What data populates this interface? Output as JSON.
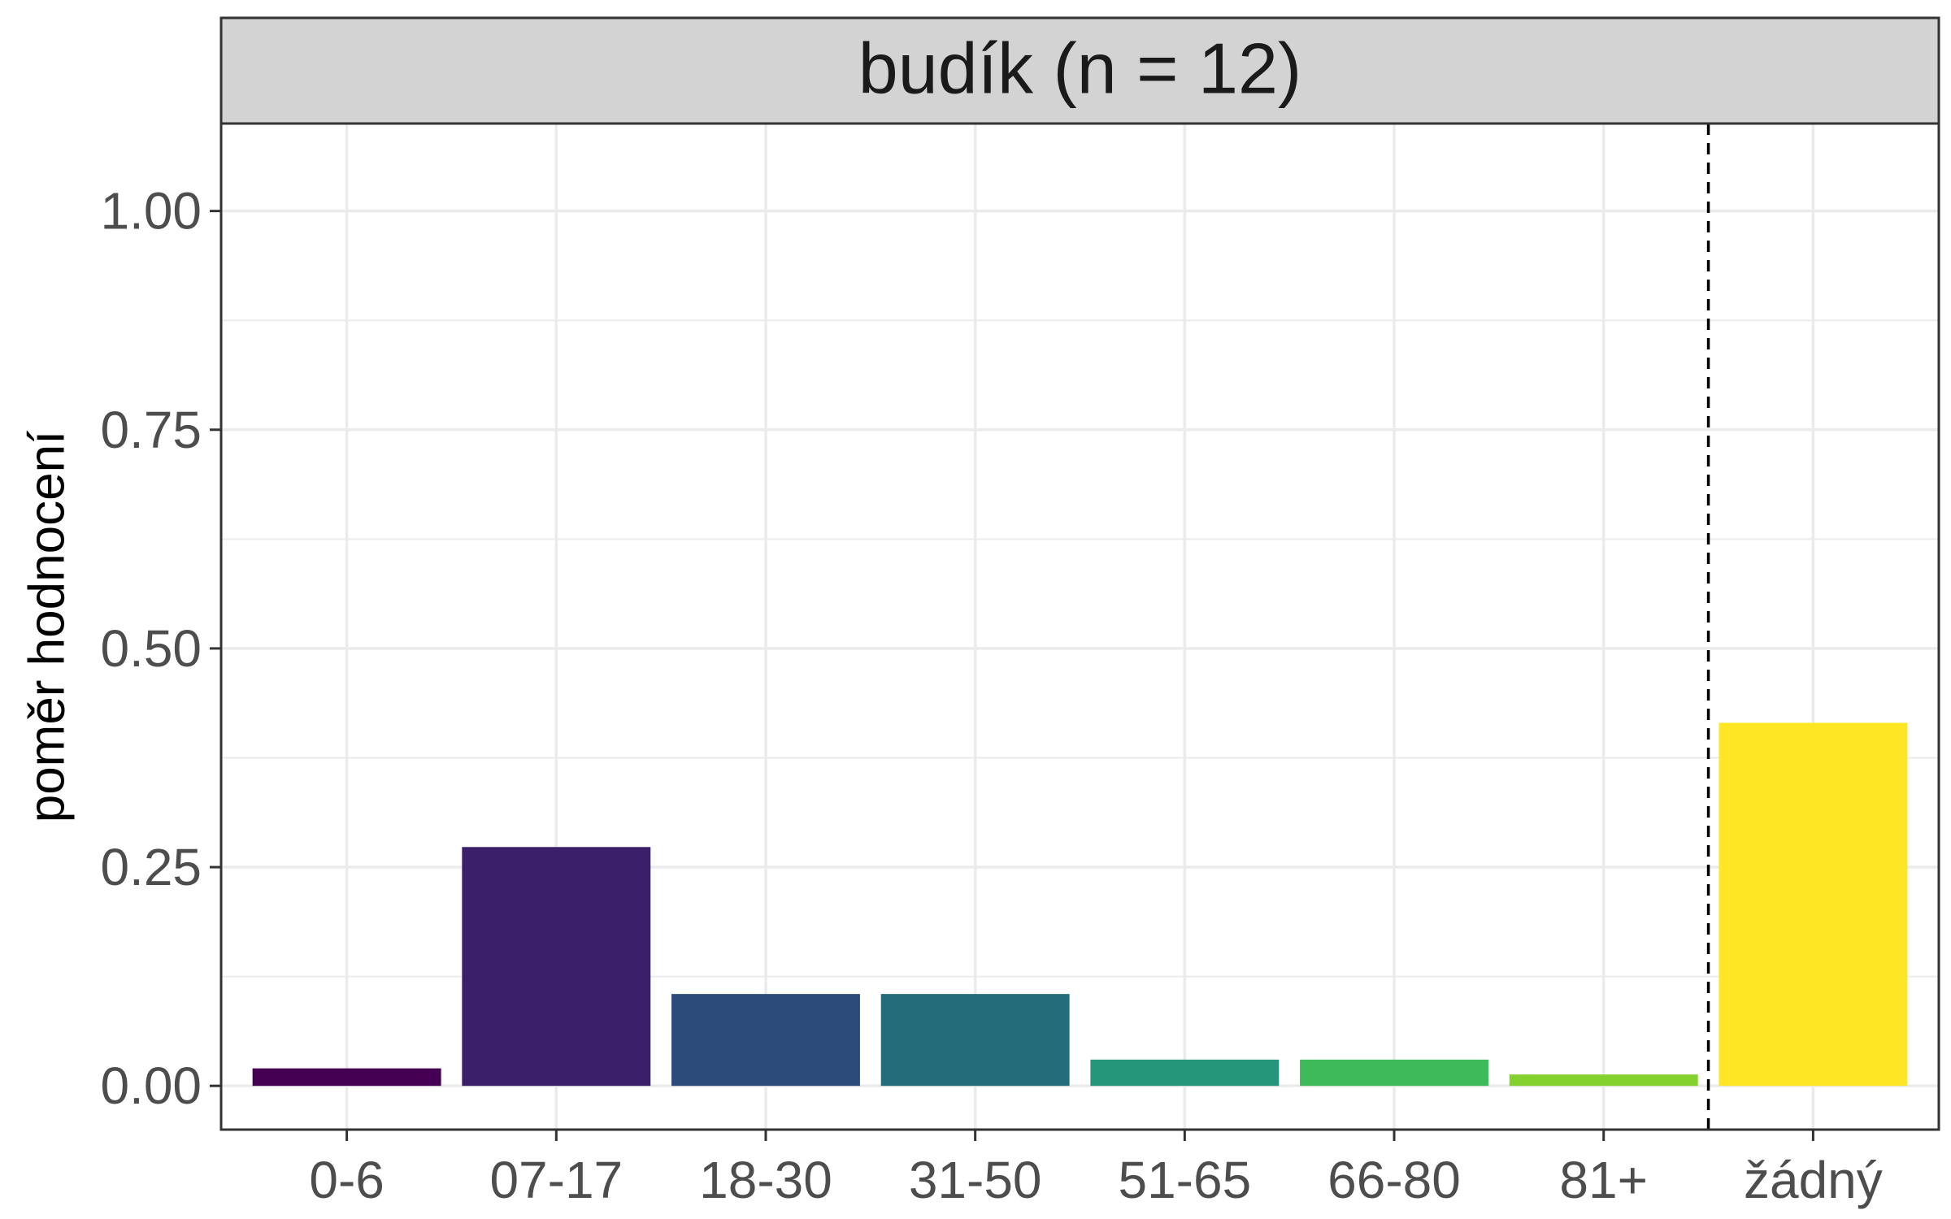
{
  "chart_data": {
    "type": "bar",
    "title": "budík (n = 12)",
    "xlabel": "",
    "ylabel": "poměr hodnocení",
    "ylim": [
      -0.05,
      1.1
    ],
    "y_ticks": [
      0.0,
      0.25,
      0.5,
      0.75,
      1.0
    ],
    "y_tick_labels": [
      "0.00",
      "0.25",
      "0.50",
      "0.75",
      "1.00"
    ],
    "categories": [
      "0-6",
      "07-17",
      "18-30",
      "31-50",
      "51-65",
      "66-80",
      "81+",
      "žádný"
    ],
    "values": [
      0.02,
      0.273,
      0.105,
      0.105,
      0.03,
      0.03,
      0.013,
      0.415
    ],
    "bar_colors": [
      "#440154",
      "#3b1f6a",
      "#2c4b7a",
      "#236d7a",
      "#25967a",
      "#3fba58",
      "#84d02c",
      "#fde725"
    ],
    "reference_line": {
      "between": [
        "81+",
        "žádný"
      ],
      "style": "dashed",
      "color": "#000000"
    },
    "grid": true,
    "strip_background": "#d3d3d3",
    "panel_border": "#333333",
    "gridline_color": "#ebebeb"
  }
}
